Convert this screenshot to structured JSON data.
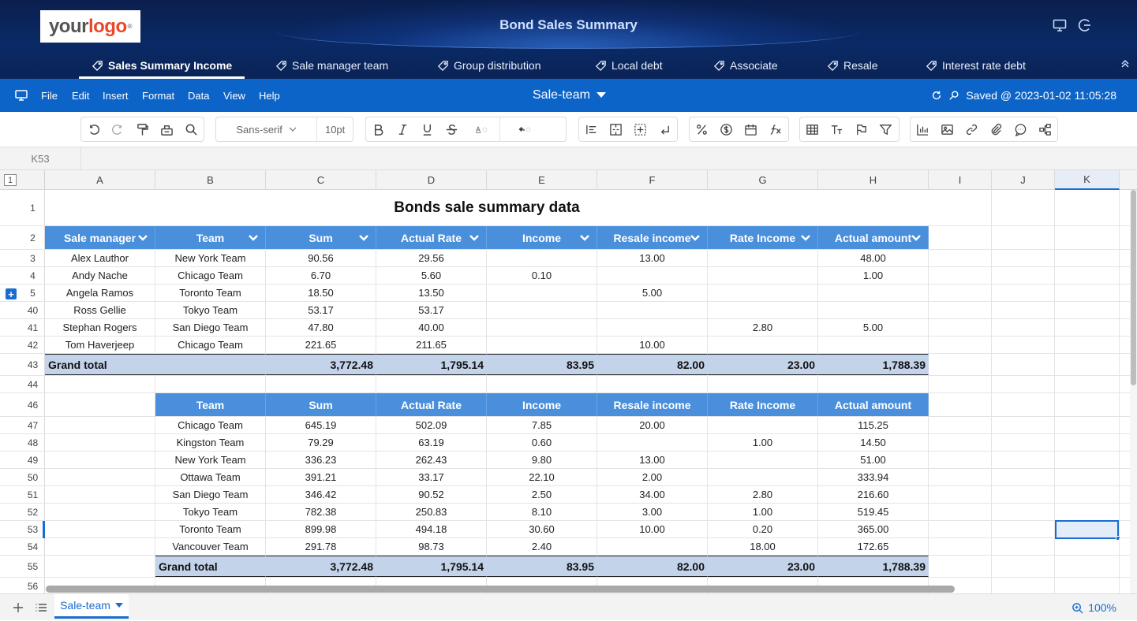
{
  "header": {
    "logo_text_1": "your",
    "logo_text_2": "logo",
    "logo_mark": "®",
    "title": "Bond Sales Summary",
    "icons": [
      "monitor-icon",
      "logout-icon"
    ]
  },
  "nav": {
    "tabs": [
      {
        "label": "Sales Summary Income",
        "active": true
      },
      {
        "label": "Sale manager team"
      },
      {
        "label": "Group distribution"
      },
      {
        "label": "Local debt"
      },
      {
        "label": "Associate"
      },
      {
        "label": "Resale"
      },
      {
        "label": "Interest rate debt"
      }
    ]
  },
  "menu": {
    "items": [
      "File",
      "Edit",
      "Insert",
      "Format",
      "Data",
      "View",
      "Help"
    ],
    "sheet_name": "Sale-team",
    "save_status": "Saved @ 2023-01-02 11:05:28"
  },
  "toolbar": {
    "font_family": "Sans-serif",
    "font_size": "10pt"
  },
  "namebox": {
    "cell_ref": "K53"
  },
  "columns": [
    "A",
    "B",
    "C",
    "D",
    "E",
    "F",
    "G",
    "H",
    "I",
    "J",
    "K"
  ],
  "selected_column": "K",
  "outline_level": "1",
  "table1": {
    "title": "Bonds sale summary data",
    "headers": [
      "Sale manager",
      "Team",
      "Sum",
      "Actual Rate",
      "Income",
      "Resale income",
      "Rate Income",
      "Actual amount"
    ],
    "rows": [
      {
        "row": "3",
        "cells": [
          "Alex Lauthor",
          "New York Team",
          "90.56",
          "29.56",
          "",
          "13.00",
          "",
          "48.00"
        ]
      },
      {
        "row": "4",
        "cells": [
          "Andy Nache",
          "Chicago Team",
          "6.70",
          "5.60",
          "0.10",
          "",
          "",
          "1.00"
        ]
      },
      {
        "row": "5",
        "cells": [
          "Angela Ramos",
          "Toronto Team",
          "18.50",
          "13.50",
          "",
          "5.00",
          "",
          ""
        ]
      },
      {
        "row": "40",
        "cells": [
          "Ross Gellie",
          "Tokyo Team",
          "53.17",
          "53.17",
          "",
          "",
          "",
          ""
        ]
      },
      {
        "row": "41",
        "cells": [
          "Stephan Rogers",
          "San Diego Team",
          "47.80",
          "40.00",
          "",
          "",
          "2.80",
          "5.00"
        ]
      },
      {
        "row": "42",
        "cells": [
          "Tom Haverjeep",
          "Chicago Team",
          "221.65",
          "211.65",
          "",
          "10.00",
          "",
          ""
        ]
      }
    ],
    "total": {
      "row": "43",
      "label": "Grand total",
      "values": [
        "3,772.48",
        "1,795.14",
        "83.95",
        "82.00",
        "23.00",
        "1,788.39"
      ]
    }
  },
  "table2": {
    "headers": [
      "Team",
      "Sum",
      "Actual Rate",
      "Income",
      "Resale income",
      "Rate Income",
      "Actual amount"
    ],
    "rows": [
      {
        "row": "47",
        "cells": [
          "Chicago Team",
          "645.19",
          "502.09",
          "7.85",
          "20.00",
          "",
          "115.25"
        ]
      },
      {
        "row": "48",
        "cells": [
          "Kingston Team",
          "79.29",
          "63.19",
          "0.60",
          "",
          "1.00",
          "14.50"
        ]
      },
      {
        "row": "49",
        "cells": [
          "New York Team",
          "336.23",
          "262.43",
          "9.80",
          "13.00",
          "",
          "51.00"
        ]
      },
      {
        "row": "50",
        "cells": [
          "Ottawa Team",
          "391.21",
          "33.17",
          "22.10",
          "2.00",
          "",
          "333.94"
        ]
      },
      {
        "row": "51",
        "cells": [
          "San Diego Team",
          "346.42",
          "90.52",
          "2.50",
          "34.00",
          "2.80",
          "216.60"
        ]
      },
      {
        "row": "52",
        "cells": [
          "Tokyo Team",
          "782.38",
          "250.83",
          "8.10",
          "3.00",
          "1.00",
          "519.45"
        ]
      },
      {
        "row": "53",
        "cells": [
          "Toronto Team",
          "899.98",
          "494.18",
          "30.60",
          "10.00",
          "0.20",
          "365.00"
        ]
      },
      {
        "row": "54",
        "cells": [
          "Vancouver Team",
          "291.78",
          "98.73",
          "2.40",
          "",
          "18.00",
          "172.65"
        ]
      }
    ],
    "total": {
      "row": "55",
      "label": "Grand total",
      "values": [
        "3,772.48",
        "1,795.14",
        "83.95",
        "82.00",
        "23.00",
        "1,788.39"
      ]
    }
  },
  "row_numbers": {
    "title": "1",
    "header1": "2",
    "blank": "44",
    "header2": "46",
    "last": "56"
  },
  "statusbar": {
    "sheet_tab": "Sale-team",
    "zoom": "100%"
  },
  "colors": {
    "header_bg": "#0b1f4d",
    "menubar_bg": "#0c64c8",
    "table_header": "#4a8fdb",
    "total_row": "#c3d3ea",
    "selection": "#1a6dd0"
  }
}
